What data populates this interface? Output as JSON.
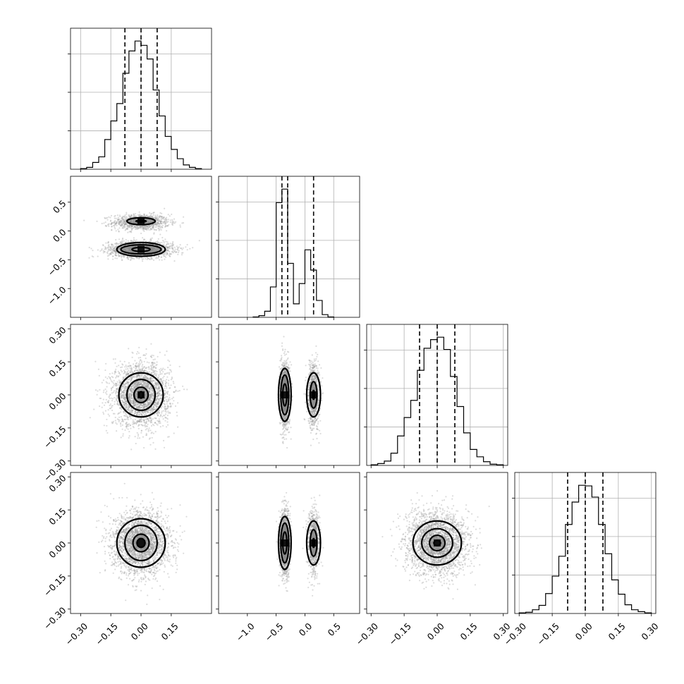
{
  "chart_data": {
    "type": "corner",
    "description_note": "",
    "parameters": [
      {
        "index": 0,
        "range": [
          -0.35,
          0.35
        ],
        "ticks": [
          -0.3,
          -0.15,
          0.0,
          0.15
        ],
        "tick_labels": [
          "−0.30",
          "−0.15",
          "0.00",
          "0.15"
        ],
        "quantiles": [
          -0.08,
          0.0,
          0.08
        ],
        "histogram": {
          "edges": [
            -0.3,
            -0.27,
            -0.24,
            -0.21,
            -0.18,
            -0.15,
            -0.12,
            -0.09,
            -0.06,
            -0.03,
            0.0,
            0.03,
            0.06,
            0.09,
            0.12,
            0.15,
            0.18,
            0.21,
            0.24,
            0.27,
            0.3
          ],
          "counts": [
            1,
            3,
            11,
            20,
            48,
            78,
            106,
            155,
            191,
            207,
            200,
            178,
            128,
            86,
            53,
            32,
            17,
            7,
            3,
            1
          ]
        }
      },
      {
        "index": 1,
        "range": [
          -1.5,
          0.95
        ],
        "ticks": [
          -1.0,
          -0.5,
          0.0,
          0.5
        ],
        "tick_labels": [
          "−1.0",
          "−0.5",
          "0.0",
          "0.5"
        ],
        "quantiles": [
          -0.4,
          -0.3,
          0.15
        ],
        "histogram": {
          "edges": [
            -0.9,
            -0.8,
            -0.7,
            -0.6,
            -0.5,
            -0.4,
            -0.3,
            -0.2,
            -0.1,
            0.0,
            0.1,
            0.2,
            0.3,
            0.4,
            0.5
          ],
          "counts": [
            1,
            5,
            18,
            90,
            340,
            380,
            160,
            40,
            100,
            200,
            140,
            50,
            8,
            1
          ]
        }
      },
      {
        "index": 2,
        "range": [
          -0.32,
          0.32
        ],
        "ticks": [
          -0.3,
          -0.15,
          0.0,
          0.15,
          0.3
        ],
        "tick_labels": [
          "−0.30",
          "−0.15",
          "0.00",
          "0.15",
          "0.30"
        ],
        "quantiles": [
          -0.08,
          0.0,
          0.08
        ],
        "histogram": {
          "edges": [
            -0.3,
            -0.27,
            -0.24,
            -0.21,
            -0.18,
            -0.15,
            -0.12,
            -0.09,
            -0.06,
            -0.03,
            0.0,
            0.03,
            0.06,
            0.09,
            0.12,
            0.15,
            0.18,
            0.21,
            0.24,
            0.27,
            0.3
          ],
          "counts": [
            1,
            3,
            7,
            20,
            48,
            78,
            106,
            155,
            191,
            205,
            209,
            189,
            145,
            96,
            53,
            26,
            14,
            6,
            2,
            1
          ]
        }
      },
      {
        "index": 3,
        "range": [
          -0.32,
          0.32
        ],
        "ticks": [
          -0.3,
          -0.15,
          0.0,
          0.15,
          0.3
        ],
        "tick_labels": [
          "−0.30",
          "−0.15",
          "0.00",
          "0.15",
          "0.30"
        ],
        "quantiles": [
          -0.08,
          0.0,
          0.08
        ],
        "histogram": {
          "edges": [
            -0.3,
            -0.27,
            -0.24,
            -0.21,
            -0.18,
            -0.15,
            -0.12,
            -0.09,
            -0.06,
            -0.03,
            0.0,
            0.03,
            0.06,
            0.09,
            0.12,
            0.15,
            0.18,
            0.21,
            0.24,
            0.27,
            0.3
          ],
          "counts": [
            1,
            2,
            6,
            13,
            32,
            60,
            92,
            143,
            179,
            206,
            205,
            187,
            143,
            96,
            54,
            31,
            14,
            6,
            3,
            1
          ]
        }
      }
    ],
    "pair_panels": [
      {
        "row": 1,
        "col": 0,
        "components": [
          {
            "center": [
              0.0,
              0.15
            ],
            "sigma": [
              0.07,
              0.07
            ],
            "weight": 0.38
          },
          {
            "center": [
              0.0,
              -0.32
            ],
            "sigma": [
              0.08,
              0.07
            ],
            "weight": 0.62
          }
        ],
        "contour_rings": [
          {
            "center": [
              0.0,
              0.17
            ],
            "radii": [
              [
                0.07,
                0.06
              ],
              [
                0.025,
                0.015
              ]
            ]
          },
          {
            "center": [
              0.0,
              -0.32
            ],
            "radii": [
              [
                0.12,
                0.12
              ],
              [
                0.1,
                0.08
              ],
              [
                0.045,
                0.035
              ]
            ]
          }
        ]
      },
      {
        "row": 2,
        "col": 0,
        "components": [
          {
            "center": [
              0.0,
              0.0
            ],
            "sigma": [
              0.07,
              0.07
            ],
            "weight": 1.0
          }
        ],
        "contour_rings": [
          {
            "center": [
              0.0,
              0.0
            ],
            "radii": [
              [
                0.11,
                0.1
              ],
              [
                0.07,
                0.07
              ],
              [
                0.035,
                0.035
              ],
              [
                0.01,
                0.015
              ]
            ]
          }
        ]
      },
      {
        "row": 2,
        "col": 1,
        "components": [
          {
            "center": [
              -0.35,
              0.0
            ],
            "sigma": [
              0.04,
              0.07
            ],
            "weight": 0.62
          },
          {
            "center": [
              0.15,
              0.0
            ],
            "sigma": [
              0.05,
              0.07
            ],
            "weight": 0.38
          }
        ],
        "contour_rings": [
          {
            "center": [
              -0.35,
              0.0
            ],
            "radii": [
              [
                0.11,
                0.12
              ],
              [
                0.07,
                0.09
              ],
              [
                0.035,
                0.05
              ]
            ]
          },
          {
            "center": [
              0.15,
              0.0
            ],
            "radii": [
              [
                0.12,
                0.1
              ],
              [
                0.06,
                0.06
              ],
              [
                0.015,
                0.02
              ]
            ]
          }
        ]
      },
      {
        "row": 3,
        "col": 0,
        "components": [
          {
            "center": [
              0.0,
              0.0
            ],
            "sigma": [
              0.07,
              0.07
            ],
            "weight": 1.0
          }
        ],
        "contour_rings": [
          {
            "center": [
              0.0,
              0.0
            ],
            "radii": [
              [
                0.12,
                0.11
              ],
              [
                0.08,
                0.08
              ],
              [
                0.04,
                0.04
              ],
              [
                0.02,
                0.02
              ]
            ]
          }
        ]
      },
      {
        "row": 3,
        "col": 1,
        "components": [
          {
            "center": [
              -0.35,
              0.0
            ],
            "sigma": [
              0.04,
              0.07
            ],
            "weight": 0.62
          },
          {
            "center": [
              0.15,
              0.0
            ],
            "sigma": [
              0.05,
              0.07
            ],
            "weight": 0.38
          }
        ],
        "contour_rings": [
          {
            "center": [
              -0.35,
              0.0
            ],
            "radii": [
              [
                0.11,
                0.12
              ],
              [
                0.07,
                0.09
              ],
              [
                0.035,
                0.05
              ]
            ]
          },
          {
            "center": [
              0.15,
              0.0
            ],
            "radii": [
              [
                0.12,
                0.1
              ],
              [
                0.06,
                0.06
              ],
              [
                0.015,
                0.02
              ]
            ]
          }
        ]
      },
      {
        "row": 3,
        "col": 2,
        "components": [
          {
            "center": [
              0.0,
              0.0
            ],
            "sigma": [
              0.07,
              0.07
            ],
            "weight": 1.0
          }
        ],
        "contour_rings": [
          {
            "center": [
              0.0,
              0.0
            ],
            "radii": [
              [
                0.11,
                0.1
              ],
              [
                0.07,
                0.065
              ],
              [
                0.035,
                0.035
              ],
              [
                0.015,
                0.012
              ]
            ]
          }
        ]
      }
    ],
    "grid": true,
    "samples_per_panel": 2600
  }
}
